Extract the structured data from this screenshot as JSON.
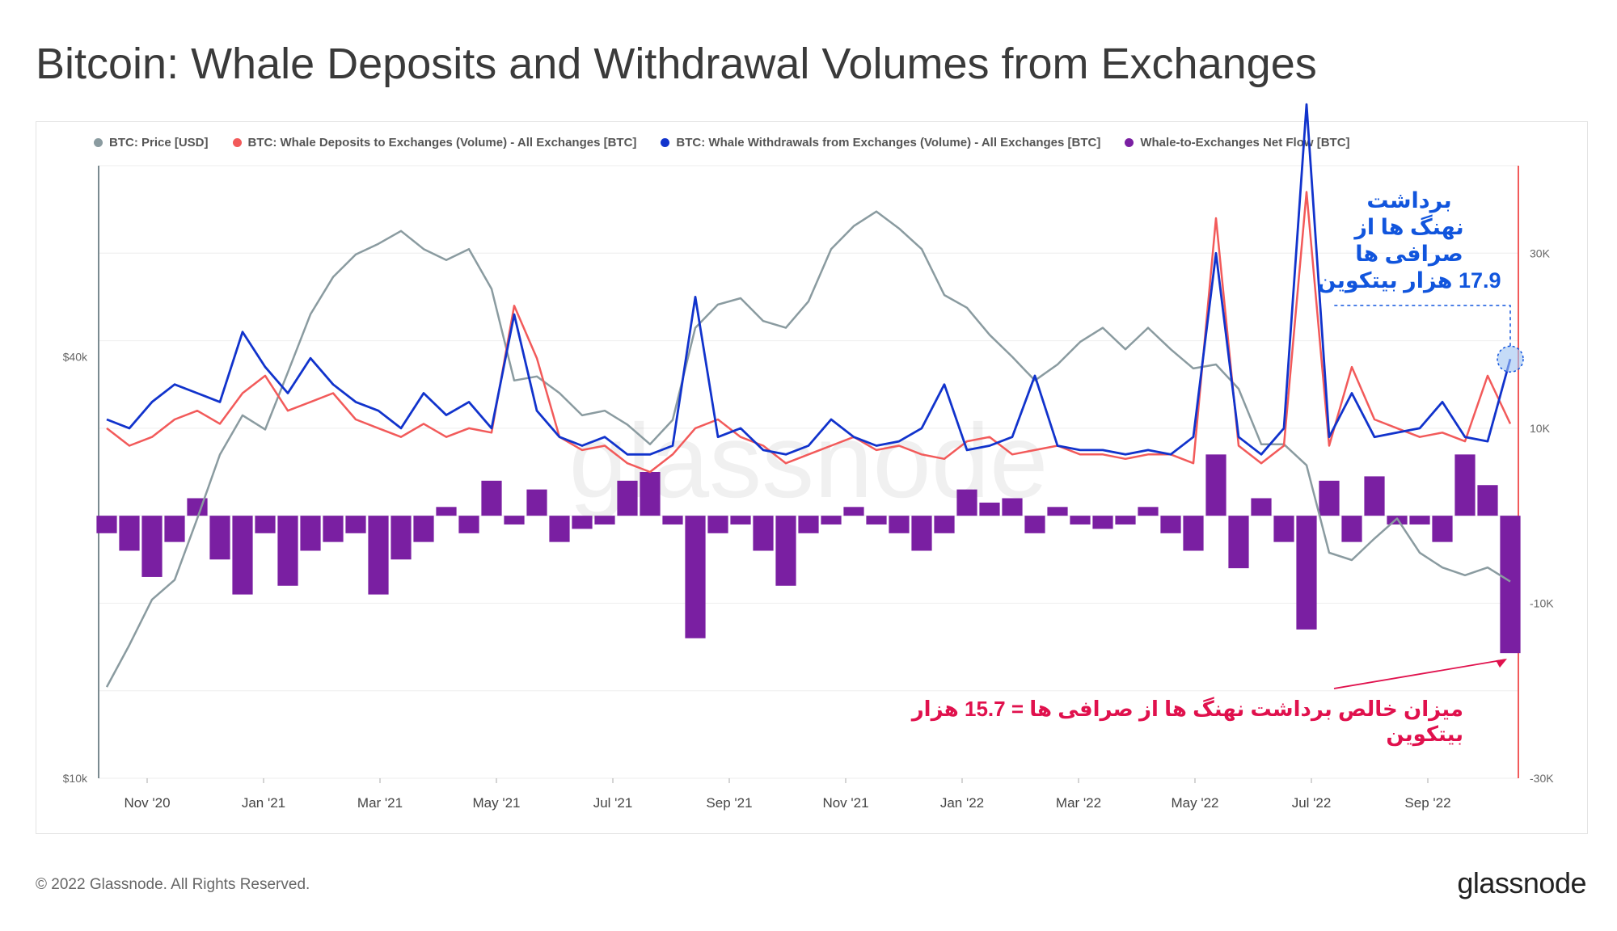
{
  "title": "Bitcoin: Whale Deposits and Withdrawal Volumes from Exchanges",
  "footer": "© 2022 Glassnode. All Rights Reserved.",
  "brand": "glassnode",
  "watermark": "glassnode",
  "legend": [
    {
      "label": "BTC: Price [USD]",
      "color": "#8a9ba0"
    },
    {
      "label": "BTC: Whale Deposits to Exchanges (Volume) - All Exchanges [BTC]",
      "color": "#f25a5a"
    },
    {
      "label": "BTC: Whale Withdrawals from Exchanges (Volume) - All Exchanges [BTC]",
      "color": "#1133cc"
    },
    {
      "label": "Whale-to-Exchanges Net Flow [BTC]",
      "color": "#7a1fa2"
    }
  ],
  "annotations": {
    "top_line1": "برداشت",
    "top_line2": "نهنگ ها از",
    "top_line3": "صرافی ها",
    "top_line4": "17.9 هزار بیتکوین",
    "bottom": "میزان خالص برداشت نهنگ ها از صرافی ها  =  15.7 هزار بیتکوین"
  },
  "chart_data": {
    "type": "line",
    "x_ticks": [
      "Nov '20",
      "Jan '21",
      "Mar '21",
      "May '21",
      "Jul '21",
      "Sep '21",
      "Nov '21",
      "Jan '22",
      "Mar '22",
      "May '22",
      "Jul '22",
      "Sep '22"
    ],
    "y_left_ticks": [
      "$10k",
      "$40k"
    ],
    "y_left_scale": "log",
    "y_left_range": [
      10000,
      75000
    ],
    "y_right_ticks": [
      "30K",
      "10K",
      "-10K",
      "-30K"
    ],
    "y_right_range": [
      -30000,
      40000
    ],
    "series": [
      {
        "name": "BTC: Price [USD]",
        "axis": "left",
        "color": "#8a9ba0",
        "values": [
          13500,
          15500,
          18000,
          19200,
          23500,
          29000,
          33000,
          31500,
          38000,
          46000,
          52000,
          56000,
          58000,
          60500,
          57000,
          55000,
          57000,
          50000,
          37000,
          37500,
          35500,
          33000,
          33500,
          32000,
          30000,
          32500,
          44000,
          47500,
          48500,
          45000,
          44000,
          48000,
          57000,
          61500,
          64500,
          61000,
          57000,
          49000,
          47000,
          43000,
          40000,
          37000,
          39000,
          42000,
          44000,
          41000,
          44000,
          41000,
          38500,
          39000,
          36000,
          30000,
          30000,
          28000,
          21000,
          20500,
          22000,
          23500,
          21000,
          20000,
          19500,
          20000,
          19100
        ]
      },
      {
        "name": "BTC: Whale Deposits to Exchanges (Volume) - All Exchanges [BTC]",
        "axis": "right",
        "color": "#f25a5a",
        "values": [
          10000,
          8000,
          9000,
          11000,
          12000,
          10500,
          14000,
          16000,
          12000,
          13000,
          14000,
          11000,
          10000,
          9000,
          10500,
          9000,
          10000,
          9500,
          24000,
          18000,
          9000,
          7500,
          8000,
          6000,
          5000,
          7000,
          10000,
          11000,
          9000,
          8000,
          6000,
          7000,
          8000,
          9000,
          7500,
          8000,
          7000,
          6500,
          8500,
          9000,
          7000,
          7500,
          8000,
          7000,
          7000,
          6500,
          7000,
          7000,
          6000,
          34000,
          8000,
          6000,
          8000,
          37000,
          8000,
          17000,
          11000,
          10000,
          9000,
          9500,
          8500,
          16000,
          10500
        ]
      },
      {
        "name": "BTC: Whale Withdrawals from Exchanges (Volume) - All Exchanges [BTC]",
        "axis": "right",
        "color": "#1133cc",
        "values": [
          11000,
          10000,
          13000,
          15000,
          14000,
          13000,
          21000,
          17000,
          14000,
          18000,
          15000,
          13000,
          12000,
          10000,
          14000,
          11500,
          13000,
          10000,
          23000,
          12000,
          9000,
          8000,
          9000,
          7000,
          7000,
          8000,
          25000,
          9000,
          10000,
          7500,
          7000,
          8000,
          11000,
          9000,
          8000,
          8500,
          10000,
          15000,
          7500,
          8000,
          9000,
          16000,
          8000,
          7500,
          7500,
          7000,
          7500,
          7000,
          9000,
          30000,
          9000,
          7000,
          10000,
          47000,
          9000,
          14000,
          9000,
          9500,
          10000,
          13000,
          9000,
          8500,
          17900
        ]
      },
      {
        "name": "Whale-to-Exchanges Net Flow [BTC]",
        "axis": "right",
        "color": "#7a1fa2",
        "values": [
          -2000,
          -4000,
          -7000,
          -3000,
          2000,
          -5000,
          -9000,
          -2000,
          -8000,
          -4000,
          -3000,
          -2000,
          -9000,
          -5000,
          -3000,
          1000,
          -2000,
          4000,
          -1000,
          3000,
          -3000,
          -1500,
          -1000,
          4000,
          5000,
          -1000,
          -14000,
          -2000,
          -1000,
          -4000,
          -8000,
          -2000,
          -1000,
          1000,
          -1000,
          -2000,
          -4000,
          -2000,
          3000,
          1500,
          2000,
          -2000,
          1000,
          -1000,
          -1500,
          -1000,
          1000,
          -2000,
          -4000,
          7000,
          -6000,
          2000,
          -3000,
          -13000,
          4000,
          -3000,
          4500,
          -1000,
          -1000,
          -3000,
          7000,
          3500,
          -15700
        ]
      }
    ],
    "grid": "horizontal"
  }
}
